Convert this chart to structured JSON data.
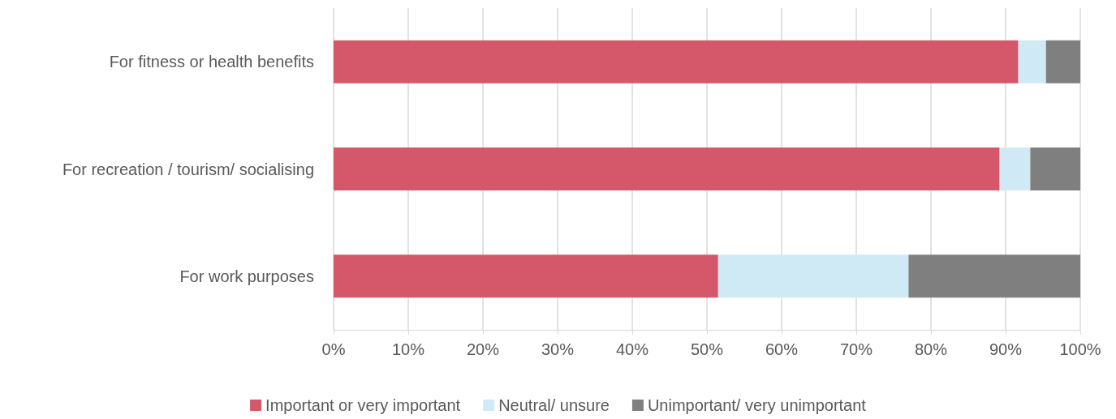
{
  "chart_data": {
    "type": "bar",
    "orientation": "horizontal",
    "stacked": true,
    "categories": [
      "For fitness or health benefits",
      "For recreation / tourism/ socialising",
      "For work purposes"
    ],
    "series": [
      {
        "name": "Important or very important",
        "color": "#d45869",
        "values": [
          91.7,
          89.2,
          51.5
        ]
      },
      {
        "name": "Neutral/ unsure",
        "color": "#d0eaf5",
        "values": [
          3.7,
          4.1,
          25.5
        ]
      },
      {
        "name": "Unimportant/ very unimportant",
        "color": "#7f7f7f",
        "values": [
          4.6,
          6.7,
          23.0
        ]
      }
    ],
    "xlim": [
      0,
      100
    ],
    "xticks": [
      {
        "value": 0,
        "label": "0%"
      },
      {
        "value": 10,
        "label": "10%"
      },
      {
        "value": 20,
        "label": "20%"
      },
      {
        "value": 30,
        "label": "30%"
      },
      {
        "value": 40,
        "label": "40%"
      },
      {
        "value": 50,
        "label": "50%"
      },
      {
        "value": 60,
        "label": "60%"
      },
      {
        "value": 70,
        "label": "70%"
      },
      {
        "value": 80,
        "label": "80%"
      },
      {
        "value": 90,
        "label": "90%"
      },
      {
        "value": 100,
        "label": "100%"
      }
    ],
    "grid": "x",
    "legend": "bottom"
  }
}
